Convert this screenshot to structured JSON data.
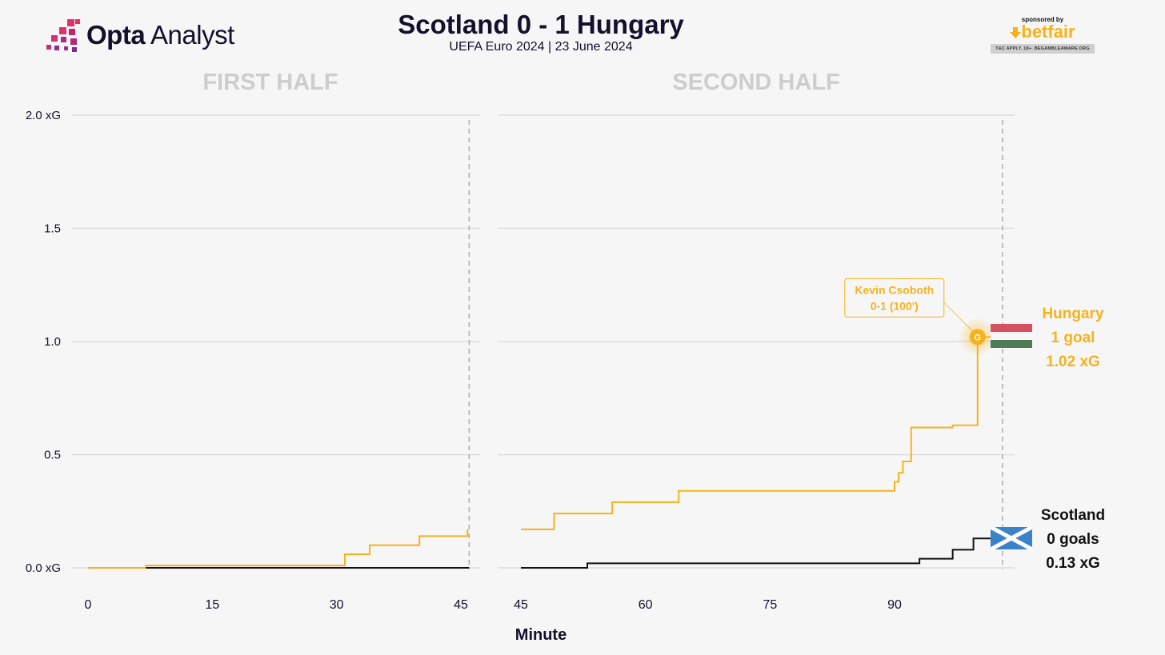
{
  "header": {
    "brand": {
      "part1": "Opta",
      "part2": " Analyst"
    },
    "title": "Scotland 0 - 1 Hungary",
    "subtitle": "UEFA Euro 2024 | 23 June 2024",
    "sponsor": {
      "label": "sponsored by",
      "name": "betfair",
      "terms": "T&C APPLY. 18+. BEGAMBLEAWARE.ORG",
      "color": "#f6b21b"
    }
  },
  "colors": {
    "hungary": "#f6b21b",
    "scotland": "#111111",
    "grid": "#dcdcdc",
    "halfTitle": "#cdcdcd"
  },
  "chart_data": {
    "type": "line",
    "panels": [
      {
        "title": "FIRST HALF",
        "xlim": [
          0,
          46
        ],
        "xticks": [
          0,
          15,
          30,
          45
        ],
        "end_minute": 46
      },
      {
        "title": "SECOND HALF",
        "xlim": [
          45,
          103
        ],
        "xticks": [
          45,
          60,
          75,
          90
        ],
        "end_minute": 103
      }
    ],
    "xlabel": "Minute",
    "ylim": [
      0,
      2
    ],
    "yticks": [
      {
        "value": 0,
        "label": "0.0 xG"
      },
      {
        "value": 0.5,
        "label": "0.5"
      },
      {
        "value": 1,
        "label": "1.0"
      },
      {
        "value": 1.5,
        "label": "1.5"
      },
      {
        "value": 2,
        "label": "2.0 xG"
      }
    ],
    "grid": true,
    "series": [
      {
        "name": "Hungary",
        "goals_label": "1 goal",
        "xg_label": "1.02 xG",
        "first_half": [
          [
            0,
            0
          ],
          [
            7,
            0.01
          ],
          [
            31,
            0.06
          ],
          [
            34,
            0.1
          ],
          [
            40,
            0.14
          ],
          [
            45.8,
            0.17
          ]
        ],
        "second_half": [
          [
            45,
            0.17
          ],
          [
            49,
            0.24
          ],
          [
            56,
            0.29
          ],
          [
            64,
            0.34
          ],
          [
            90,
            0.38
          ],
          [
            90.5,
            0.42
          ],
          [
            91,
            0.47
          ],
          [
            92,
            0.62
          ],
          [
            97,
            0.63
          ],
          [
            100,
            1.02
          ],
          [
            102,
            1.02
          ]
        ],
        "final_xg": 1.02
      },
      {
        "name": "Scotland",
        "goals_label": "0 goals",
        "xg_label": "0.13 xG",
        "first_half": [
          [
            7,
            0
          ],
          [
            46,
            0
          ]
        ],
        "second_half": [
          [
            45,
            0
          ],
          [
            53,
            0.02
          ],
          [
            93,
            0.04
          ],
          [
            97,
            0.08
          ],
          [
            99.5,
            0.13
          ],
          [
            102,
            0.13
          ]
        ],
        "final_xg": 0.13
      }
    ],
    "annotations": [
      {
        "player": "Kevin Csoboth",
        "score": "0-1 (100')",
        "minute": 100,
        "xg": 1.02,
        "marker": "G"
      }
    ]
  }
}
